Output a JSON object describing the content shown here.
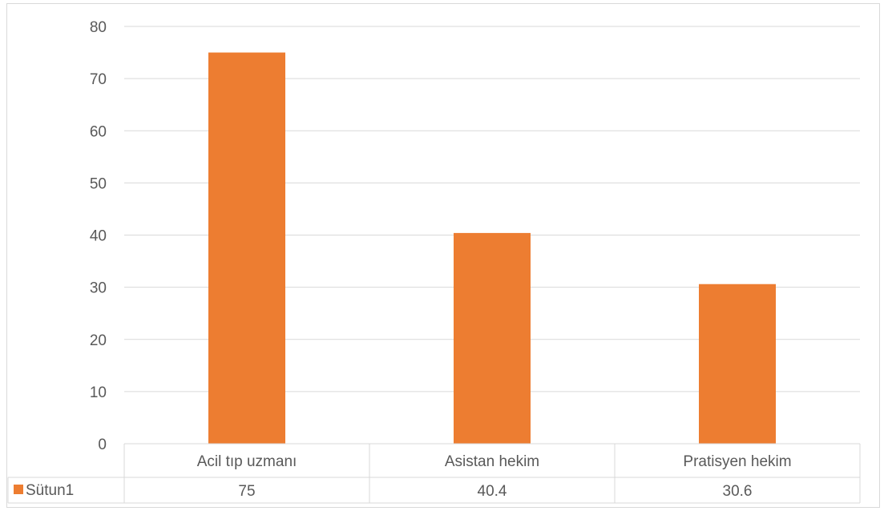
{
  "chart_data": {
    "type": "bar",
    "categories": [
      "Acil tıp uzmanı",
      "Asistan hekim",
      "Pratisyen hekim"
    ],
    "series": [
      {
        "name": "Sütun1",
        "values": [
          75,
          40.4,
          30.6
        ],
        "color": "#ED7D31"
      }
    ],
    "data_table": {
      "series_label": "Sütun1",
      "values": [
        "75",
        "40.4",
        "30.6"
      ]
    },
    "ylim": [
      0,
      80
    ],
    "yticks": [
      "0",
      "10",
      "20",
      "30",
      "40",
      "50",
      "60",
      "70",
      "80"
    ],
    "grid": true,
    "legend": "data-table",
    "colors": {
      "bar": "#ED7D31",
      "grid": "#d9d9d9",
      "text": "#595959"
    }
  }
}
